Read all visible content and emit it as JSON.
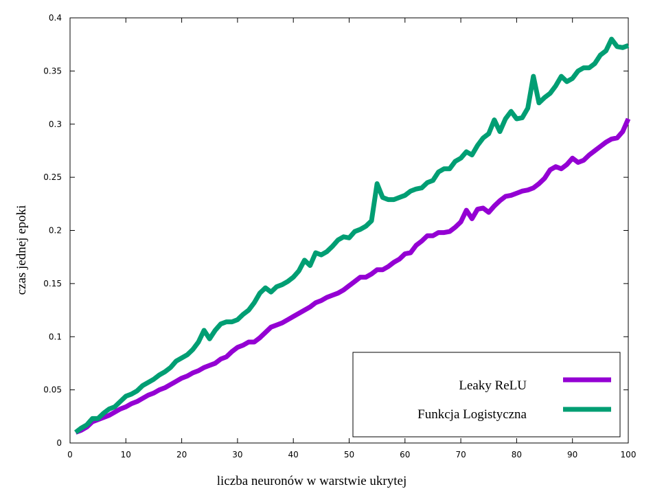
{
  "chart_data": {
    "type": "line",
    "title": "",
    "xlabel": "liczba neuronów w warstwie ukrytej",
    "ylabel": "czas jednej epoki",
    "xlim": [
      0,
      100
    ],
    "ylim": [
      0,
      0.4
    ],
    "xticks": [
      0,
      10,
      20,
      30,
      40,
      50,
      60,
      70,
      80,
      90,
      100
    ],
    "xtick_labels": [
      "0",
      "10",
      "20",
      "30",
      "40",
      "50",
      "60",
      "70",
      "80",
      "90",
      "100"
    ],
    "yticks": [
      0,
      0.05,
      0.1,
      0.15,
      0.2,
      0.25,
      0.3,
      0.35,
      0.4
    ],
    "ytick_labels": [
      "0",
      "0.05",
      "0.1",
      "0.15",
      "0.2",
      "0.25",
      "0.3",
      "0.35",
      "0.4"
    ],
    "grid": false,
    "legend_position": "bottom-right",
    "x": [
      1,
      2,
      3,
      4,
      5,
      6,
      7,
      8,
      9,
      10,
      11,
      12,
      13,
      14,
      15,
      16,
      17,
      18,
      19,
      20,
      21,
      22,
      23,
      24,
      25,
      26,
      27,
      28,
      29,
      30,
      31,
      32,
      33,
      34,
      35,
      36,
      37,
      38,
      39,
      40,
      41,
      42,
      43,
      44,
      45,
      46,
      47,
      48,
      49,
      50,
      51,
      52,
      53,
      54,
      55,
      56,
      57,
      58,
      59,
      60,
      61,
      62,
      63,
      64,
      65,
      66,
      67,
      68,
      69,
      70,
      71,
      72,
      73,
      74,
      75,
      76,
      77,
      78,
      79,
      80,
      81,
      82,
      83,
      84,
      85,
      86,
      87,
      88,
      89,
      90,
      91,
      92,
      93,
      94,
      95,
      96,
      97,
      98,
      99,
      100
    ],
    "series": [
      {
        "name": "Leaky ReLU",
        "color": "#9400d3",
        "values": [
          0.01,
          0.012,
          0.015,
          0.02,
          0.022,
          0.024,
          0.026,
          0.029,
          0.032,
          0.034,
          0.037,
          0.039,
          0.042,
          0.045,
          0.047,
          0.05,
          0.052,
          0.055,
          0.058,
          0.061,
          0.063,
          0.066,
          0.068,
          0.071,
          0.073,
          0.075,
          0.079,
          0.081,
          0.086,
          0.09,
          0.092,
          0.095,
          0.095,
          0.099,
          0.104,
          0.109,
          0.111,
          0.113,
          0.116,
          0.119,
          0.122,
          0.125,
          0.128,
          0.132,
          0.134,
          0.137,
          0.139,
          0.141,
          0.144,
          0.148,
          0.152,
          0.156,
          0.156,
          0.159,
          0.163,
          0.163,
          0.166,
          0.17,
          0.173,
          0.178,
          0.179,
          0.186,
          0.19,
          0.195,
          0.195,
          0.198,
          0.198,
          0.199,
          0.203,
          0.208,
          0.219,
          0.211,
          0.22,
          0.221,
          0.217,
          0.223,
          0.228,
          0.232,
          0.233,
          0.235,
          0.237,
          0.238,
          0.24,
          0.244,
          0.249,
          0.257,
          0.26,
          0.258,
          0.262,
          0.268,
          0.264,
          0.266,
          0.271,
          0.275,
          0.279,
          0.283,
          0.286,
          0.287,
          0.293,
          0.305
        ]
      },
      {
        "name": "Funkcja Logistyczna",
        "color": "#009e73",
        "values": [
          0.01,
          0.014,
          0.017,
          0.023,
          0.023,
          0.028,
          0.032,
          0.034,
          0.039,
          0.044,
          0.046,
          0.049,
          0.054,
          0.057,
          0.06,
          0.064,
          0.067,
          0.071,
          0.077,
          0.08,
          0.083,
          0.088,
          0.095,
          0.106,
          0.098,
          0.106,
          0.112,
          0.114,
          0.114,
          0.116,
          0.121,
          0.125,
          0.132,
          0.141,
          0.146,
          0.142,
          0.147,
          0.149,
          0.152,
          0.156,
          0.162,
          0.172,
          0.167,
          0.179,
          0.177,
          0.18,
          0.185,
          0.191,
          0.194,
          0.193,
          0.199,
          0.201,
          0.204,
          0.209,
          0.244,
          0.231,
          0.229,
          0.229,
          0.231,
          0.233,
          0.237,
          0.239,
          0.24,
          0.245,
          0.247,
          0.255,
          0.258,
          0.258,
          0.265,
          0.268,
          0.274,
          0.271,
          0.28,
          0.287,
          0.291,
          0.304,
          0.293,
          0.305,
          0.312,
          0.305,
          0.306,
          0.315,
          0.345,
          0.32,
          0.325,
          0.329,
          0.336,
          0.345,
          0.34,
          0.343,
          0.35,
          0.353,
          0.353,
          0.357,
          0.365,
          0.369,
          0.38,
          0.373,
          0.372,
          0.374
        ]
      }
    ]
  }
}
